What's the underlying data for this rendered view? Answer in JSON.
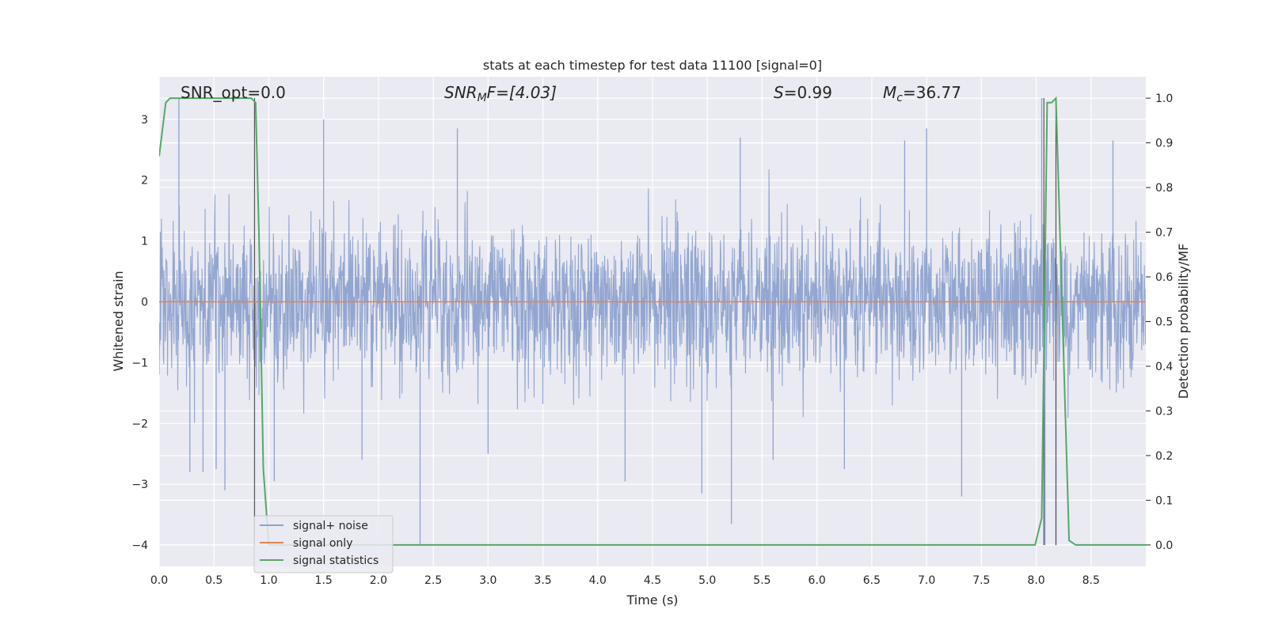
{
  "chart_data": {
    "type": "line",
    "title": "stats at each timestep for test data 11100 [signal=0]",
    "xlabel": "Time (s)",
    "ylabel_left": "Whitened strain",
    "ylabel_right": "Detection probability/MF",
    "xlim": [
      0.0,
      9.0
    ],
    "ylim_left": [
      -4.35,
      3.7
    ],
    "ylim_right": [
      -0.048,
      1.048
    ],
    "x_ticks": [
      "0.0",
      "0.5",
      "1.0",
      "1.5",
      "2.0",
      "2.5",
      "3.0",
      "3.5",
      "4.0",
      "4.5",
      "5.0",
      "5.5",
      "6.0",
      "6.5",
      "7.0",
      "7.5",
      "8.0",
      "8.5"
    ],
    "x_tick_values": [
      0.0,
      0.5,
      1.0,
      1.5,
      2.0,
      2.5,
      3.0,
      3.5,
      4.0,
      4.5,
      5.0,
      5.5,
      6.0,
      6.5,
      7.0,
      7.5,
      8.0,
      8.5
    ],
    "y_left_ticks": [
      "−4",
      "−3",
      "−2",
      "−1",
      "0",
      "1",
      "2",
      "3"
    ],
    "y_left_tick_values": [
      -4,
      -3,
      -2,
      -1,
      0,
      1,
      2,
      3
    ],
    "y_right_ticks": [
      "0.0",
      "0.1",
      "0.2",
      "0.3",
      "0.4",
      "0.5",
      "0.6",
      "0.7",
      "0.8",
      "0.9",
      "1.0"
    ],
    "y_right_tick_values": [
      0.0,
      0.1,
      0.2,
      0.3,
      0.4,
      0.5,
      0.6,
      0.7,
      0.8,
      0.9,
      1.0
    ],
    "grid": true,
    "legend_position": "lower-left",
    "annotations": {
      "snr_opt": "SNR_opt=0.0",
      "snr_mf_base": "SNR",
      "snr_mf_sub": "M",
      "snr_mf_rest": "F=[4.03]",
      "s_italic": "S",
      "s_rest": "=0.99",
      "mc_base": "M",
      "mc_sub": "c",
      "mc_rest": "=36.77"
    },
    "series": [
      {
        "name": "signal+ noise",
        "color": "#8ea2cd",
        "axis": "left",
        "x_range": [
          0.0,
          9.0
        ],
        "amplitude_envelope": [
          -1.2,
          1.2
        ],
        "spikes": [
          {
            "x": 0.18,
            "y": 3.35
          },
          {
            "x": 0.28,
            "y": -2.8
          },
          {
            "x": 0.4,
            "y": -2.8
          },
          {
            "x": 0.52,
            "y": -2.75
          },
          {
            "x": 0.6,
            "y": -3.1
          },
          {
            "x": 1.05,
            "y": -2.95
          },
          {
            "x": 1.5,
            "y": 3.0
          },
          {
            "x": 1.85,
            "y": -2.6
          },
          {
            "x": 2.38,
            "y": -4.0
          },
          {
            "x": 2.72,
            "y": 2.85
          },
          {
            "x": 3.0,
            "y": -2.5
          },
          {
            "x": 4.25,
            "y": -2.95
          },
          {
            "x": 5.3,
            "y": 2.7
          },
          {
            "x": 4.95,
            "y": -3.15
          },
          {
            "x": 5.22,
            "y": -3.65
          },
          {
            "x": 5.6,
            "y": -2.6
          },
          {
            "x": 6.25,
            "y": -2.75
          },
          {
            "x": 7.0,
            "y": 2.85
          },
          {
            "x": 7.32,
            "y": -3.2
          },
          {
            "x": 8.05,
            "y": 3.35
          },
          {
            "x": 8.08,
            "y": -4.0
          },
          {
            "x": 8.18,
            "y": -4.0
          },
          {
            "x": 8.7,
            "y": 2.65
          },
          {
            "x": 6.8,
            "y": 2.65
          }
        ]
      },
      {
        "name": "signal only",
        "color": "#dd8452",
        "axis": "left",
        "x": [
          0.0,
          9.0
        ],
        "y": [
          0.0,
          0.0
        ]
      },
      {
        "name": "signal statistics",
        "color": "#55a868",
        "axis": "right",
        "x": [
          0.0,
          0.06,
          0.1,
          0.84,
          0.88,
          0.91,
          0.95,
          1.0,
          7.99,
          8.05,
          8.1,
          8.14,
          8.18,
          8.3,
          8.36,
          9.0
        ],
        "y": [
          0.87,
          0.99,
          1.0,
          1.0,
          0.99,
          0.7,
          0.17,
          0.0,
          0.0,
          0.06,
          0.99,
          0.99,
          1.0,
          0.01,
          0.0,
          0.0
        ]
      }
    ],
    "vertical_lines": [
      {
        "x": 0.87,
        "y_range": [
          -4.0,
          3.35
        ],
        "color": "#555555"
      },
      {
        "x": 8.07,
        "y_range": [
          -4.0,
          3.35
        ],
        "color": "#555555"
      },
      {
        "x": 8.18,
        "y_range": [
          -4.0,
          3.35
        ],
        "color": "#555555"
      }
    ]
  }
}
